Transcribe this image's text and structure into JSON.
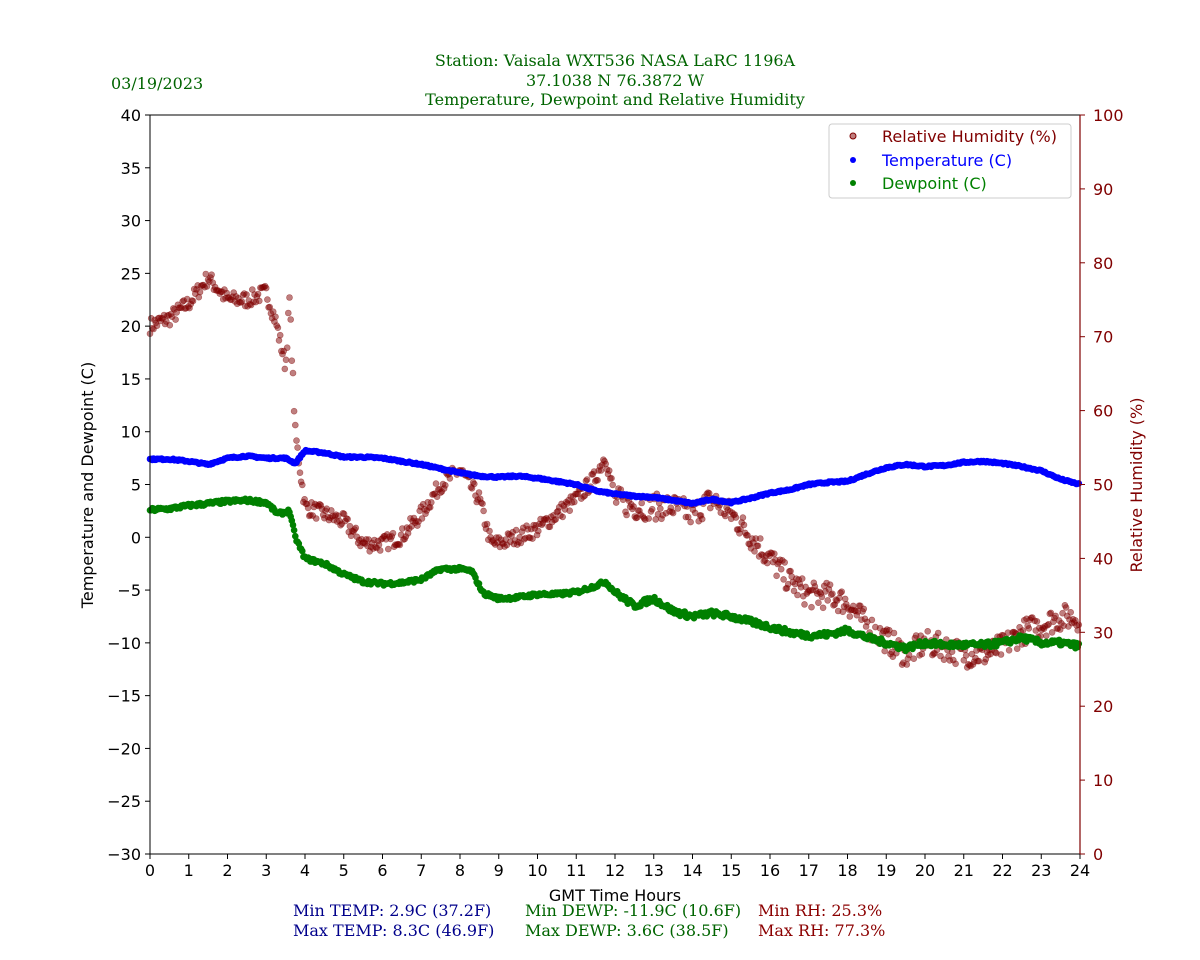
{
  "date": "03/19/2023",
  "colors": {
    "title": "#006400",
    "temp": "#0000ff",
    "dewp": "#008000",
    "rh": "#800000",
    "stats_temp": "#00008b",
    "stats_dewp": "#006400",
    "stats_rh": "#8b0000"
  },
  "stats": {
    "min_temp": "Min TEMP: 2.9C (37.2F)",
    "max_temp": "Max TEMP: 8.3C (46.9F)",
    "min_dewp": "Min DEWP: -11.9C (10.6F)",
    "max_dewp": "Max DEWP: 3.6C (38.5F)",
    "min_rh": "Min RH: 25.3%",
    "max_rh": "Max RH: 77.3%"
  },
  "chart_data": {
    "type": "scatter",
    "title_lines": [
      "Station:  Vaisala WXT536  NASA LaRC 1196A",
      "37.1038 N 76.3872 W",
      "Temperature, Dewpoint and Relative Humidity"
    ],
    "xlabel": "GMT Time Hours",
    "ylabel": "Temperature and Dewpoint (C)",
    "y2label": "Relative Humidity (%)",
    "xlim": [
      0,
      24
    ],
    "ylim": [
      -30,
      40
    ],
    "y2lim": [
      0,
      100
    ],
    "xticks": [
      "0",
      "1",
      "2",
      "3",
      "4",
      "5",
      "6",
      "7",
      "8",
      "9",
      "10",
      "11",
      "12",
      "13",
      "14",
      "15",
      "16",
      "17",
      "18",
      "19",
      "20",
      "21",
      "22",
      "23",
      "24"
    ],
    "yticks": [
      "−30",
      "−25",
      "−20",
      "−15",
      "−10",
      "−5",
      "0",
      "5",
      "10",
      "15",
      "20",
      "25",
      "30",
      "35",
      "40"
    ],
    "y2ticks": [
      "0",
      "10",
      "20",
      "30",
      "40",
      "50",
      "60",
      "70",
      "80",
      "90",
      "100"
    ],
    "legend": {
      "placement": "top-right",
      "entries": [
        "Relative Humidity (%)",
        "Temperature (C)",
        "Dewpoint (C)"
      ]
    },
    "series": [
      {
        "name": "Relative Humidity (%)",
        "axis": "right",
        "x": [
          0,
          0.5,
          1,
          1.5,
          2,
          2.5,
          3,
          3.25,
          3.5,
          3.6,
          3.75,
          4,
          4.5,
          5,
          5.5,
          6,
          6.5,
          7,
          7.5,
          8,
          8.5,
          8.8,
          9,
          9.5,
          10,
          10.5,
          11,
          11.5,
          11.75,
          12,
          12.5,
          13,
          13.5,
          14,
          14.5,
          15,
          15.5,
          16,
          16.5,
          17,
          17.5,
          18,
          18.5,
          19,
          19.5,
          20,
          20.5,
          21,
          21.5,
          22,
          22.5,
          23,
          23.5,
          24
        ],
        "y": [
          71.5,
          72.5,
          74.5,
          78,
          75,
          75,
          76,
          72,
          66,
          75,
          57,
          47,
          46,
          45,
          42,
          42,
          43,
          46,
          50,
          52,
          48,
          42,
          42,
          43,
          44,
          46,
          48,
          51,
          54,
          48,
          47,
          47,
          47,
          46,
          48,
          46,
          43,
          40,
          37,
          35,
          35,
          34,
          31,
          29,
          27,
          28.5,
          28,
          27,
          27,
          28,
          30,
          31,
          32,
          32
        ]
      },
      {
        "name": "Temperature (C)",
        "axis": "left",
        "x": [
          0,
          0.5,
          1,
          1.5,
          2,
          2.5,
          3,
          3.5,
          3.75,
          4,
          4.5,
          5,
          5.5,
          6,
          6.5,
          7,
          7.5,
          8,
          8.5,
          9,
          9.5,
          10,
          10.5,
          11,
          11.5,
          12,
          12.5,
          13,
          13.5,
          14,
          14.5,
          15,
          15.5,
          16,
          16.5,
          17,
          17.5,
          18,
          18.5,
          19,
          19.5,
          20,
          20.5,
          21,
          21.5,
          22,
          22.5,
          23,
          23.5,
          24
        ],
        "y": [
          7.4,
          7.4,
          7.2,
          6.9,
          7.5,
          7.7,
          7.5,
          7.5,
          7.0,
          8.2,
          8.0,
          7.6,
          7.6,
          7.5,
          7.2,
          6.9,
          6.5,
          6.1,
          5.8,
          5.7,
          5.8,
          5.6,
          5.3,
          5.0,
          4.4,
          4.1,
          3.9,
          3.8,
          3.5,
          3.2,
          3.6,
          3.3,
          3.7,
          4.2,
          4.5,
          5.0,
          5.2,
          5.3,
          6.0,
          6.6,
          6.9,
          6.7,
          6.8,
          7.1,
          7.2,
          7.0,
          6.7,
          6.3,
          5.5,
          5.0
        ]
      },
      {
        "name": "Dewpoint (C)",
        "axis": "left",
        "x": [
          0,
          0.5,
          1,
          1.5,
          2,
          2.5,
          3,
          3.3,
          3.6,
          3.75,
          4,
          4.5,
          5,
          5.5,
          6,
          6.5,
          7,
          7.5,
          8,
          8.3,
          8.6,
          9,
          9.5,
          10,
          10.5,
          11,
          11.5,
          11.75,
          12,
          12.5,
          13,
          13.5,
          14,
          14.5,
          15,
          15.5,
          16,
          16.5,
          17,
          17.5,
          18,
          18.5,
          19,
          19.5,
          20,
          20.5,
          21,
          21.5,
          22,
          22.5,
          23,
          23.5,
          24
        ],
        "y": [
          2.6,
          2.7,
          3.0,
          3.2,
          3.4,
          3.5,
          3.3,
          2.2,
          2.5,
          0,
          -2.0,
          -2.5,
          -3.5,
          -4.2,
          -4.4,
          -4.3,
          -4.0,
          -3.0,
          -3.0,
          -3.2,
          -5.3,
          -5.8,
          -5.7,
          -5.4,
          -5.4,
          -5.2,
          -4.6,
          -4.2,
          -5.2,
          -6.5,
          -5.8,
          -7.0,
          -7.5,
          -7.2,
          -7.5,
          -8.0,
          -8.5,
          -9.0,
          -9.3,
          -9.2,
          -8.8,
          -9.5,
          -10.0,
          -10.5,
          -10.0,
          -10.2,
          -10.2,
          -10.2,
          -10.0,
          -9.5,
          -10.0,
          -10.0,
          -10.3
        ]
      }
    ]
  }
}
